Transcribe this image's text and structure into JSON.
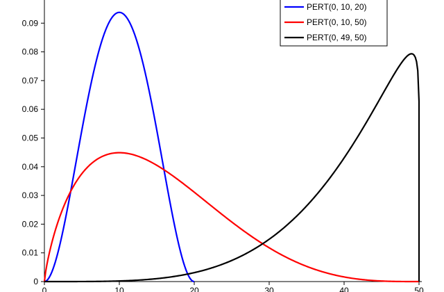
{
  "chart_data": {
    "type": "line",
    "title": "",
    "xlabel": "",
    "ylabel": "",
    "xlim": [
      0,
      50
    ],
    "ylim": [
      0,
      0.1
    ],
    "x_ticks": [
      0,
      10,
      20,
      30,
      40,
      50
    ],
    "x_tick_labels": [
      "0",
      "10",
      "20",
      "30",
      "40",
      "50"
    ],
    "y_ticks": [
      0,
      0.01,
      0.02,
      0.03,
      0.04,
      0.05,
      0.06,
      0.07,
      0.08,
      0.09
    ],
    "y_tick_labels": [
      "0",
      "0.01",
      "0.02",
      "0.03",
      "0.04",
      "0.05",
      "0.06",
      "0.07",
      "0.08",
      "0.09"
    ],
    "grid": false,
    "legend_position": "top-right",
    "series": [
      {
        "name": "PERT(0, 10, 20)",
        "color": "#0000ff",
        "pert": {
          "min": 0,
          "mode": 10,
          "max": 20
        },
        "points": [
          [
            0,
            0
          ],
          [
            2,
            0.0046
          ],
          [
            4,
            0.0287
          ],
          [
            6,
            0.0635
          ],
          [
            8,
            0.0889
          ],
          [
            10,
            0.0938
          ],
          [
            12,
            0.0774
          ],
          [
            14,
            0.0519
          ],
          [
            16,
            0.0267
          ],
          [
            18,
            0.0081
          ],
          [
            20,
            0
          ]
        ]
      },
      {
        "name": "PERT(0, 10, 50)",
        "color": "#ff0000",
        "pert": {
          "min": 0,
          "mode": 10,
          "max": 50
        },
        "points": [
          [
            0,
            0
          ],
          [
            5,
            0.037
          ],
          [
            10,
            0.0451
          ],
          [
            15,
            0.0412
          ],
          [
            20,
            0.0335
          ],
          [
            25,
            0.025
          ],
          [
            30,
            0.0135
          ],
          [
            35,
            0.0068
          ],
          [
            40,
            0.0026
          ],
          [
            45,
            0.0004
          ],
          [
            50,
            0
          ]
        ]
      },
      {
        "name": "PERT(0, 49, 50)",
        "color": "#000000",
        "pert": {
          "min": 0,
          "mode": 49,
          "max": 50
        },
        "points": [
          [
            0,
            0
          ],
          [
            10,
            3e-05
          ],
          [
            20,
            0.0023
          ],
          [
            25,
            0.0059
          ],
          [
            30,
            0.0133
          ],
          [
            35,
            0.0267
          ],
          [
            40,
            0.0479
          ],
          [
            45,
            0.0701
          ],
          [
            49,
            0.0795
          ],
          [
            50,
            0.0795
          ]
        ]
      }
    ]
  }
}
